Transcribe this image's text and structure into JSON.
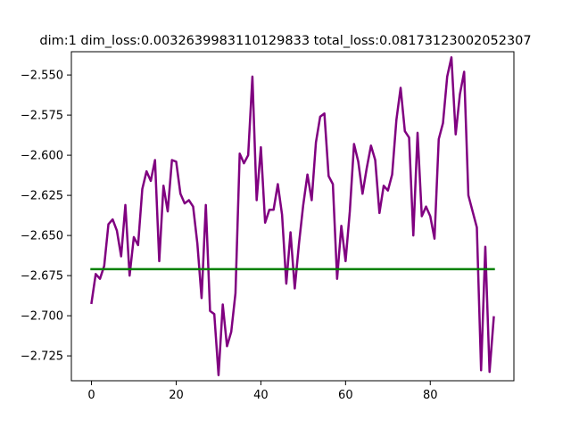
{
  "chart_data": {
    "type": "line",
    "title": "dim:1 dim_loss:0.003263998311012983​3 total_loss:0.0817312300205230​7",
    "xlabel": "",
    "ylabel": "",
    "xlim": [
      -4.75,
      99.75
    ],
    "ylim": [
      -2.7405,
      -2.5355
    ],
    "xticks": [
      0,
      20,
      40,
      60,
      80
    ],
    "yticks": [
      -2.725,
      -2.7,
      -2.675,
      -2.65,
      -2.625,
      -2.6,
      -2.575,
      -2.55
    ],
    "ytick_labels": [
      "−2.725",
      "−2.700",
      "−2.675",
      "−2.650",
      "−2.625",
      "−2.600",
      "−2.575",
      "−2.550"
    ],
    "grid": false,
    "series": [
      {
        "color": "#800080",
        "x": [
          0,
          1,
          2,
          3,
          4,
          5,
          6,
          7,
          8,
          9,
          10,
          11,
          12,
          13,
          14,
          15,
          16,
          17,
          18,
          19,
          20,
          21,
          22,
          23,
          24,
          25,
          26,
          27,
          28,
          29,
          30,
          31,
          32,
          33,
          34,
          35,
          36,
          37,
          38,
          39,
          40,
          41,
          42,
          43,
          44,
          45,
          46,
          47,
          48,
          49,
          50,
          51,
          52,
          53,
          54,
          55,
          56,
          57,
          58,
          59,
          60,
          61,
          62,
          63,
          64,
          65,
          66,
          67,
          68,
          69,
          70,
          71,
          72,
          73,
          74,
          75,
          76,
          77,
          78,
          79,
          80,
          81,
          82,
          83,
          84,
          85,
          86,
          87,
          88,
          89,
          90,
          91,
          92,
          93,
          94,
          95
        ],
        "y": [
          -2.692,
          -2.674,
          -2.677,
          -2.669,
          -2.643,
          -2.64,
          -2.647,
          -2.663,
          -2.631,
          -2.675,
          -2.651,
          -2.656,
          -2.621,
          -2.61,
          -2.616,
          -2.603,
          -2.666,
          -2.619,
          -2.635,
          -2.603,
          -2.604,
          -2.624,
          -2.63,
          -2.628,
          -2.632,
          -2.655,
          -2.689,
          -2.631,
          -2.697,
          -2.699,
          -2.737,
          -2.693,
          -2.719,
          -2.71,
          -2.686,
          -2.599,
          -2.605,
          -2.6,
          -2.551,
          -2.628,
          -2.595,
          -2.642,
          -2.634,
          -2.634,
          -2.618,
          -2.637,
          -2.68,
          -2.648,
          -2.683,
          -2.655,
          -2.631,
          -2.612,
          -2.628,
          -2.592,
          -2.576,
          -2.574,
          -2.613,
          -2.618,
          -2.677,
          -2.644,
          -2.666,
          -2.635,
          -2.593,
          -2.604,
          -2.624,
          -2.608,
          -2.594,
          -2.603,
          -2.636,
          -2.619,
          -2.622,
          -2.612,
          -2.578,
          -2.558,
          -2.585,
          -2.589,
          -2.65,
          -2.586,
          -2.638,
          -2.632,
          -2.638,
          -2.652,
          -2.59,
          -2.58,
          -2.551,
          -2.539,
          -2.587,
          -2.562,
          -2.548,
          -2.625,
          -2.635,
          -2.645,
          -2.734,
          -2.657,
          -2.735,
          -2.701
        ]
      },
      {
        "color": "#008000",
        "x": [
          0,
          95
        ],
        "y": [
          -2.671,
          -2.671
        ]
      }
    ]
  }
}
